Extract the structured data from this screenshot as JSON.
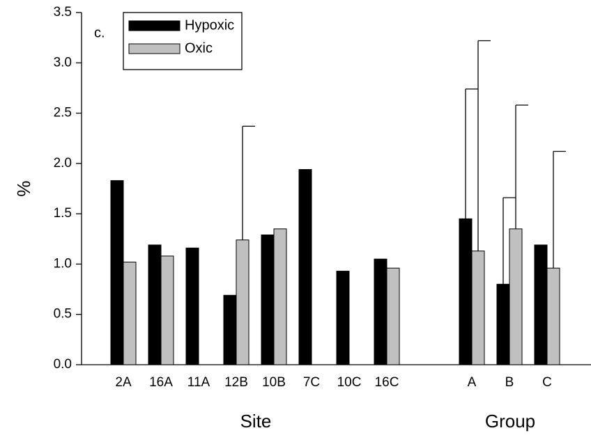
{
  "chart_data": {
    "type": "bar",
    "annotation": "c.",
    "ylabel": "%",
    "xlabel": "Site",
    "xlabel2": "Group",
    "categories": [
      "2A",
      "16A",
      "11A",
      "12B",
      "10B",
      "7C",
      "10C",
      "16C",
      null,
      "A",
      "B",
      "C"
    ],
    "series": [
      {
        "name": "Hypoxic",
        "color": "#000000",
        "values": [
          1.83,
          1.19,
          1.16,
          0.69,
          1.29,
          1.94,
          0.93,
          1.05,
          null,
          1.45,
          0.8,
          1.19
        ],
        "errors": [
          null,
          null,
          null,
          null,
          null,
          null,
          null,
          null,
          null,
          1.29,
          0.86,
          null
        ]
      },
      {
        "name": "Oxic",
        "color": "#c0c0c0",
        "values": [
          1.02,
          1.08,
          null,
          1.24,
          1.35,
          null,
          null,
          0.96,
          null,
          1.13,
          1.35,
          0.96
        ],
        "errors": [
          null,
          null,
          null,
          1.13,
          null,
          null,
          null,
          null,
          null,
          2.09,
          1.23,
          1.16
        ]
      }
    ],
    "ylim": [
      0,
      3.5
    ],
    "yticks": [
      {
        "value": 0,
        "label": "0.0"
      },
      0.5,
      {
        "value": 1,
        "label": "1.0"
      },
      1.5,
      {
        "value": 2,
        "label": "2.0"
      },
      2.5,
      {
        "value": 3,
        "label": "3.0"
      },
      3.5
    ],
    "legend": "top-left"
  }
}
